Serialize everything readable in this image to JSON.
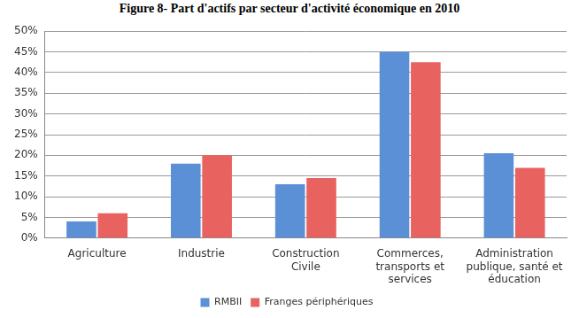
{
  "chart_data": {
    "type": "bar",
    "title": "Figure 8- Part d'actifs par secteur d'activité économique en 2010",
    "categories": [
      "Agriculture",
      "Industrie",
      "Construction Civile",
      "Commerces, transports et services",
      "Administration publique, santé et éducation"
    ],
    "series": [
      {
        "name": "RMBII",
        "color": "#5b8fd6",
        "values": [
          4,
          18,
          13,
          45,
          20.5
        ]
      },
      {
        "name": "Franges périphériques",
        "color": "#e8625f",
        "values": [
          6,
          20,
          14.5,
          42.5,
          17
        ]
      }
    ],
    "ylim": [
      0,
      50
    ],
    "yticks": [
      {
        "value": 0,
        "label": "0%"
      },
      {
        "value": 5,
        "label": "5%"
      },
      {
        "value": 10,
        "label": "10%"
      },
      {
        "value": 15,
        "label": "15%"
      },
      {
        "value": 20,
        "label": "20%"
      },
      {
        "value": 25,
        "label": "25%"
      },
      {
        "value": 30,
        "label": "30%"
      },
      {
        "value": 35,
        "label": "35%"
      },
      {
        "value": 40,
        "label": "40%"
      },
      {
        "value": 45,
        "label": "45%"
      },
      {
        "value": 50,
        "label": "50%"
      }
    ],
    "grid": true,
    "legend": "bottom",
    "data_labels": false
  }
}
